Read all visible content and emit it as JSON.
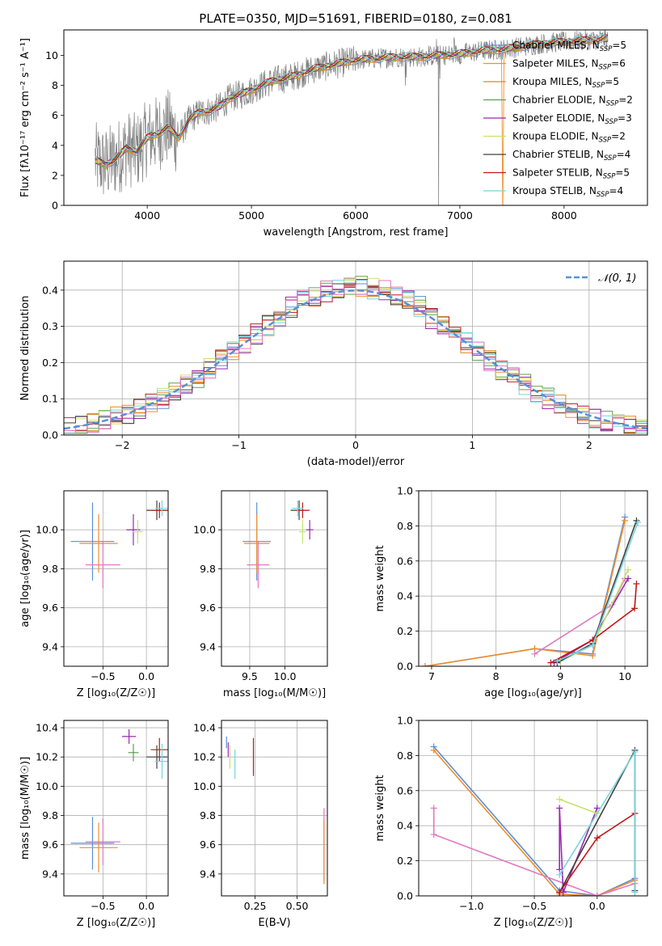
{
  "figure_title": "PLATE=0350, MJD=51691, FIBERID=0180, z=0.081",
  "colors": {
    "grid": "#b0b0b0",
    "observed": "#808080",
    "chabrier_miles": "#5b8ed6",
    "salpeter_miles": "#f28e2b",
    "kroupa_miles": "#d98a1f",
    "chabrier_elodie": "#59a14f",
    "salpeter_elodie": "#9b27b0",
    "kroupa_elodie": "#c7e26a",
    "chabrier_stelib": "#404040",
    "salpeter_stelib": "#c01717",
    "kroupa_stelib": "#76d4de",
    "pink": "#e377c2",
    "normal_curve": "#5b8ed6"
  },
  "chart_data": [
    {
      "id": "spectrum",
      "type": "line",
      "xlabel": "wavelength [Angstrom, rest frame]",
      "ylabel": "Flux [fλ10⁻¹⁷ erg cm⁻² s⁻¹ A⁻¹]",
      "xlim": [
        3200,
        8800
      ],
      "ylim": [
        0,
        11.7
      ],
      "xticks": [
        4000,
        5000,
        6000,
        7000,
        8000
      ],
      "yticks": [
        0,
        2,
        4,
        6,
        8,
        10
      ],
      "grid": false,
      "legend_position": "top-right",
      "legend": [
        {
          "label": "Chabrier MILES, N",
          "sub": "SSP",
          "suffix": "=5",
          "color": "#5b8ed6"
        },
        {
          "label": "Salpeter MILES, N",
          "sub": "SSP",
          "suffix": "=6",
          "color": "#f28e2b"
        },
        {
          "label": "Kroupa MILES, N",
          "sub": "SSP",
          "suffix": "=5",
          "color": "#d98a1f"
        },
        {
          "label": "Chabrier ELODIE, N",
          "sub": "SSP",
          "suffix": "=2",
          "color": "#59a14f"
        },
        {
          "label": "Salpeter ELODIE, N",
          "sub": "SSP",
          "suffix": "=3",
          "color": "#9b27b0"
        },
        {
          "label": "Kroupa ELODIE, N",
          "sub": "SSP",
          "suffix": "=2",
          "color": "#c7e26a"
        },
        {
          "label": "Chabrier STELIB, N",
          "sub": "SSP",
          "suffix": "=4",
          "color": "#404040"
        },
        {
          "label": "Salpeter STELIB, N",
          "sub": "SSP",
          "suffix": "=5",
          "color": "#c01717"
        },
        {
          "label": "Kroupa STELIB, N",
          "sub": "SSP",
          "suffix": "=4",
          "color": "#76d4de"
        }
      ],
      "continuum": {
        "x": [
          3500,
          3600,
          3700,
          3800,
          3900,
          4000,
          4100,
          4200,
          4300,
          4400,
          4500,
          4600,
          4700,
          4800,
          4900,
          5000,
          5200,
          5400,
          5600,
          5800,
          6000,
          6200,
          6400,
          6600,
          6800,
          7000,
          7200,
          7400,
          7600,
          7800,
          8000,
          8200,
          8400
        ],
        "y": [
          3.0,
          2.7,
          3.1,
          3.8,
          3.6,
          4.5,
          4.8,
          5.2,
          4.5,
          5.7,
          6.2,
          6.3,
          6.6,
          7.2,
          7.4,
          7.7,
          8.3,
          8.6,
          9.1,
          9.4,
          9.7,
          9.8,
          9.9,
          9.9,
          10.0,
          10.1,
          10.3,
          10.4,
          10.6,
          10.8,
          10.9,
          11.0,
          11.1
        ]
      }
    },
    {
      "id": "residuals",
      "type": "histogram",
      "xlabel": "(data-model)/error",
      "ylabel": "Normed distribution",
      "xlim": [
        -2.5,
        2.5
      ],
      "ylim": [
        0,
        0.48
      ],
      "xticks": [
        -2,
        -1,
        0,
        1,
        2
      ],
      "yticks": [
        0.0,
        0.1,
        0.2,
        0.3,
        0.4
      ],
      "grid": true,
      "legend_position": "top-right",
      "legend": [
        {
          "label": "𝒩(0, 1)",
          "style": "dashed",
          "color": "#5b8ed6"
        }
      ],
      "bin_width": 0.1
    },
    {
      "id": "age_vs_Z",
      "type": "errorbar",
      "xlabel": "Z [log₁₀(Z/Z☉)]",
      "ylabel": "age  [log₁₀(age/yr)]",
      "xlim": [
        -0.95,
        0.25
      ],
      "ylim": [
        9.3,
        10.2
      ],
      "xticks": [
        -0.5,
        0.0
      ],
      "yticks": [
        9.4,
        9.6,
        9.8,
        10.0
      ],
      "grid": true,
      "points": [
        {
          "x": -0.62,
          "y": 9.94,
          "xerr": 0.25,
          "yerr": 0.2,
          "color": "#5b8ed6"
        },
        {
          "x": -0.55,
          "y": 9.93,
          "xerr": 0.22,
          "yerr": 0.15,
          "color": "#f28e2b"
        },
        {
          "x": -0.5,
          "y": 9.82,
          "xerr": 0.2,
          "yerr": 0.12,
          "color": "#e377c2"
        },
        {
          "x": -0.15,
          "y": 10.0,
          "xerr": 0.08,
          "yerr": 0.08,
          "color": "#9b27b0"
        },
        {
          "x": -0.1,
          "y": 9.99,
          "xerr": 0.06,
          "yerr": 0.06,
          "color": "#c7e26a"
        },
        {
          "x": 0.12,
          "y": 10.1,
          "xerr": 0.12,
          "yerr": 0.05,
          "color": "#404040"
        },
        {
          "x": 0.15,
          "y": 10.1,
          "xerr": 0.1,
          "yerr": 0.04,
          "color": "#c01717"
        },
        {
          "x": 0.18,
          "y": 10.11,
          "xerr": 0.08,
          "yerr": 0.04,
          "color": "#76d4de"
        }
      ]
    },
    {
      "id": "age_vs_mass",
      "type": "errorbar",
      "xlabel": "mass [log₁₀(M/M☉)]",
      "ylabel": "",
      "xlim": [
        9.1,
        10.6
      ],
      "ylim": [
        9.3,
        10.2
      ],
      "xticks": [
        9.5,
        10.0
      ],
      "yticks": [
        9.4,
        9.6,
        9.8,
        10.0
      ],
      "grid": true,
      "points": [
        {
          "x": 9.6,
          "y": 9.94,
          "xerr": 0.2,
          "yerr": 0.2,
          "color": "#5b8ed6"
        },
        {
          "x": 9.6,
          "y": 9.93,
          "xerr": 0.18,
          "yerr": 0.15,
          "color": "#f28e2b"
        },
        {
          "x": 9.62,
          "y": 9.82,
          "xerr": 0.16,
          "yerr": 0.12,
          "color": "#e377c2"
        },
        {
          "x": 10.35,
          "y": 10.0,
          "xerr": 0.05,
          "yerr": 0.05,
          "color": "#9b27b0"
        },
        {
          "x": 10.25,
          "y": 9.99,
          "xerr": 0.05,
          "yerr": 0.06,
          "color": "#c7e26a"
        },
        {
          "x": 10.2,
          "y": 10.1,
          "xerr": 0.12,
          "yerr": 0.05,
          "color": "#404040"
        },
        {
          "x": 10.25,
          "y": 10.1,
          "xerr": 0.1,
          "yerr": 0.04,
          "color": "#c01717"
        },
        {
          "x": 10.18,
          "y": 10.11,
          "xerr": 0.08,
          "yerr": 0.04,
          "color": "#76d4de"
        }
      ]
    },
    {
      "id": "mass_weight_vs_age",
      "type": "line",
      "xlabel": "age  [log₁₀(age/yr)]",
      "ylabel": "mass weight",
      "xlim": [
        6.8,
        10.35
      ],
      "ylim": [
        0,
        1.0
      ],
      "xticks": [
        7,
        8,
        9,
        10
      ],
      "yticks": [
        0.0,
        0.2,
        0.4,
        0.6,
        0.8,
        1.0
      ],
      "grid": true,
      "series": [
        {
          "x": [
            6.9,
            8.6,
            9.5,
            10.0
          ],
          "y": [
            0.0,
            0.1,
            0.07,
            0.85
          ],
          "color": "#5b8ed6"
        },
        {
          "x": [
            6.9,
            8.6,
            9.5,
            10.0
          ],
          "y": [
            0.0,
            0.1,
            0.06,
            0.83
          ],
          "color": "#f28e2b"
        },
        {
          "x": [
            8.6,
            9.8,
            10.0
          ],
          "y": [
            0.07,
            0.35,
            0.5
          ],
          "color": "#e377c2"
        },
        {
          "x": [
            8.9,
            9.5,
            10.05
          ],
          "y": [
            0.02,
            0.15,
            0.5
          ],
          "color": "#9b27b0"
        },
        {
          "x": [
            9.0,
            9.5,
            10.05
          ],
          "y": [
            0.03,
            0.12,
            0.55
          ],
          "color": "#c7e26a"
        },
        {
          "x": [
            8.95,
            9.5,
            10.18
          ],
          "y": [
            0.02,
            0.13,
            0.83
          ],
          "color": "#404040"
        },
        {
          "x": [
            8.85,
            9.5,
            10.15,
            10.18
          ],
          "y": [
            0.02,
            0.15,
            0.33,
            0.47
          ],
          "color": "#c01717"
        },
        {
          "x": [
            8.95,
            9.5,
            10.2
          ],
          "y": [
            0.03,
            0.12,
            0.82
          ],
          "color": "#76d4de"
        }
      ]
    },
    {
      "id": "mass_vs_Z",
      "type": "errorbar",
      "xlabel": "Z [log₁₀(Z/Z☉)]",
      "ylabel": "mass [log₁₀(M/M☉)]",
      "xlim": [
        -0.95,
        0.25
      ],
      "ylim": [
        9.25,
        10.45
      ],
      "xticks": [
        -0.5,
        0.0
      ],
      "yticks": [
        9.4,
        9.6,
        9.8,
        10.0,
        10.2,
        10.4
      ],
      "grid": true,
      "points": [
        {
          "x": -0.62,
          "y": 9.61,
          "xerr": 0.25,
          "yerr": 0.18,
          "color": "#5b8ed6"
        },
        {
          "x": -0.55,
          "y": 9.58,
          "xerr": 0.22,
          "yerr": 0.17,
          "color": "#f28e2b"
        },
        {
          "x": -0.5,
          "y": 9.62,
          "xerr": 0.2,
          "yerr": 0.16,
          "color": "#e377c2"
        },
        {
          "x": -0.2,
          "y": 10.34,
          "xerr": 0.08,
          "yerr": 0.05,
          "color": "#9b27b0"
        },
        {
          "x": -0.15,
          "y": 10.23,
          "xerr": 0.06,
          "yerr": 0.06,
          "color": "#59a14f"
        },
        {
          "x": 0.12,
          "y": 10.2,
          "xerr": 0.12,
          "yerr": 0.08,
          "color": "#404040"
        },
        {
          "x": 0.15,
          "y": 10.25,
          "xerr": 0.1,
          "yerr": 0.08,
          "color": "#c01717"
        },
        {
          "x": 0.18,
          "y": 10.17,
          "xerr": 0.08,
          "yerr": 0.12,
          "color": "#76d4de"
        }
      ]
    },
    {
      "id": "mass_vs_EBV",
      "type": "errorbar",
      "xlabel": "E(B-V)",
      "ylabel": "",
      "xlim": [
        0.05,
        0.68
      ],
      "ylim": [
        9.25,
        10.45
      ],
      "xticks": [
        0.25,
        0.5
      ],
      "yticks": [
        9.4,
        9.6,
        9.8,
        10.0,
        10.2,
        10.4
      ],
      "grid": true,
      "points": [
        {
          "x": 0.08,
          "y": 10.3,
          "xerr": 0,
          "yerr": 0.04,
          "color": "#5b8ed6"
        },
        {
          "x": 0.09,
          "y": 10.25,
          "xerr": 0,
          "yerr": 0.05,
          "color": "#9b27b0"
        },
        {
          "x": 0.1,
          "y": 10.2,
          "xerr": 0,
          "yerr": 0.08,
          "color": "#c7e26a"
        },
        {
          "x": 0.13,
          "y": 10.15,
          "xerr": 0,
          "yerr": 0.1,
          "color": "#76d4de"
        },
        {
          "x": 0.24,
          "y": 10.2,
          "xerr": 0,
          "yerr": 0.13,
          "color": "#c01717"
        },
        {
          "x": 0.66,
          "y": 9.6,
          "xerr": 0,
          "yerr": 0.25,
          "color": "#e377c2"
        },
        {
          "x": 0.66,
          "y": 9.55,
          "xerr": 0,
          "yerr": 0.22,
          "color": "#f28e2b"
        }
      ]
    },
    {
      "id": "mass_weight_vs_Z",
      "type": "line",
      "xlabel": "Z [log₁₀(Z/Z☉)]",
      "ylabel": "mass weight",
      "xlim": [
        -1.42,
        0.4
      ],
      "ylim": [
        0,
        1.0
      ],
      "xticks": [
        -1.0,
        -0.5,
        0.0
      ],
      "yticks": [
        0.0,
        0.2,
        0.4,
        0.6,
        0.8,
        1.0
      ],
      "grid": true,
      "series": [
        {
          "x": [
            -1.3,
            -0.3,
            0.0,
            0.3
          ],
          "y": [
            0.85,
            0.03,
            0.0,
            0.1
          ],
          "color": "#5b8ed6"
        },
        {
          "x": [
            -1.3,
            -0.3,
            0.0,
            0.3
          ],
          "y": [
            0.83,
            0.01,
            0.0,
            0.09
          ],
          "color": "#f28e2b"
        },
        {
          "x": [
            -1.3,
            -1.3,
            0.0,
            0.3
          ],
          "y": [
            0.5,
            0.35,
            0.0,
            0.07
          ],
          "color": "#e377c2"
        },
        {
          "x": [
            -0.3,
            -0.3,
            -0.27,
            0.0
          ],
          "y": [
            0.15,
            0.5,
            0.02,
            0.5
          ],
          "color": "#9b27b0"
        },
        {
          "x": [
            -0.3,
            0.0
          ],
          "y": [
            0.55,
            0.47
          ],
          "color": "#c7e26a"
        },
        {
          "x": [
            -0.3,
            0.3,
            0.3
          ],
          "y": [
            0.02,
            0.83,
            0.03
          ],
          "color": "#404040"
        },
        {
          "x": [
            -0.3,
            0.0,
            0.3
          ],
          "y": [
            0.02,
            0.33,
            0.47
          ],
          "color": "#c01717"
        },
        {
          "x": [
            -0.3,
            0.3,
            0.3
          ],
          "y": [
            0.12,
            0.82,
            0.02
          ],
          "color": "#76d4de"
        }
      ]
    }
  ]
}
